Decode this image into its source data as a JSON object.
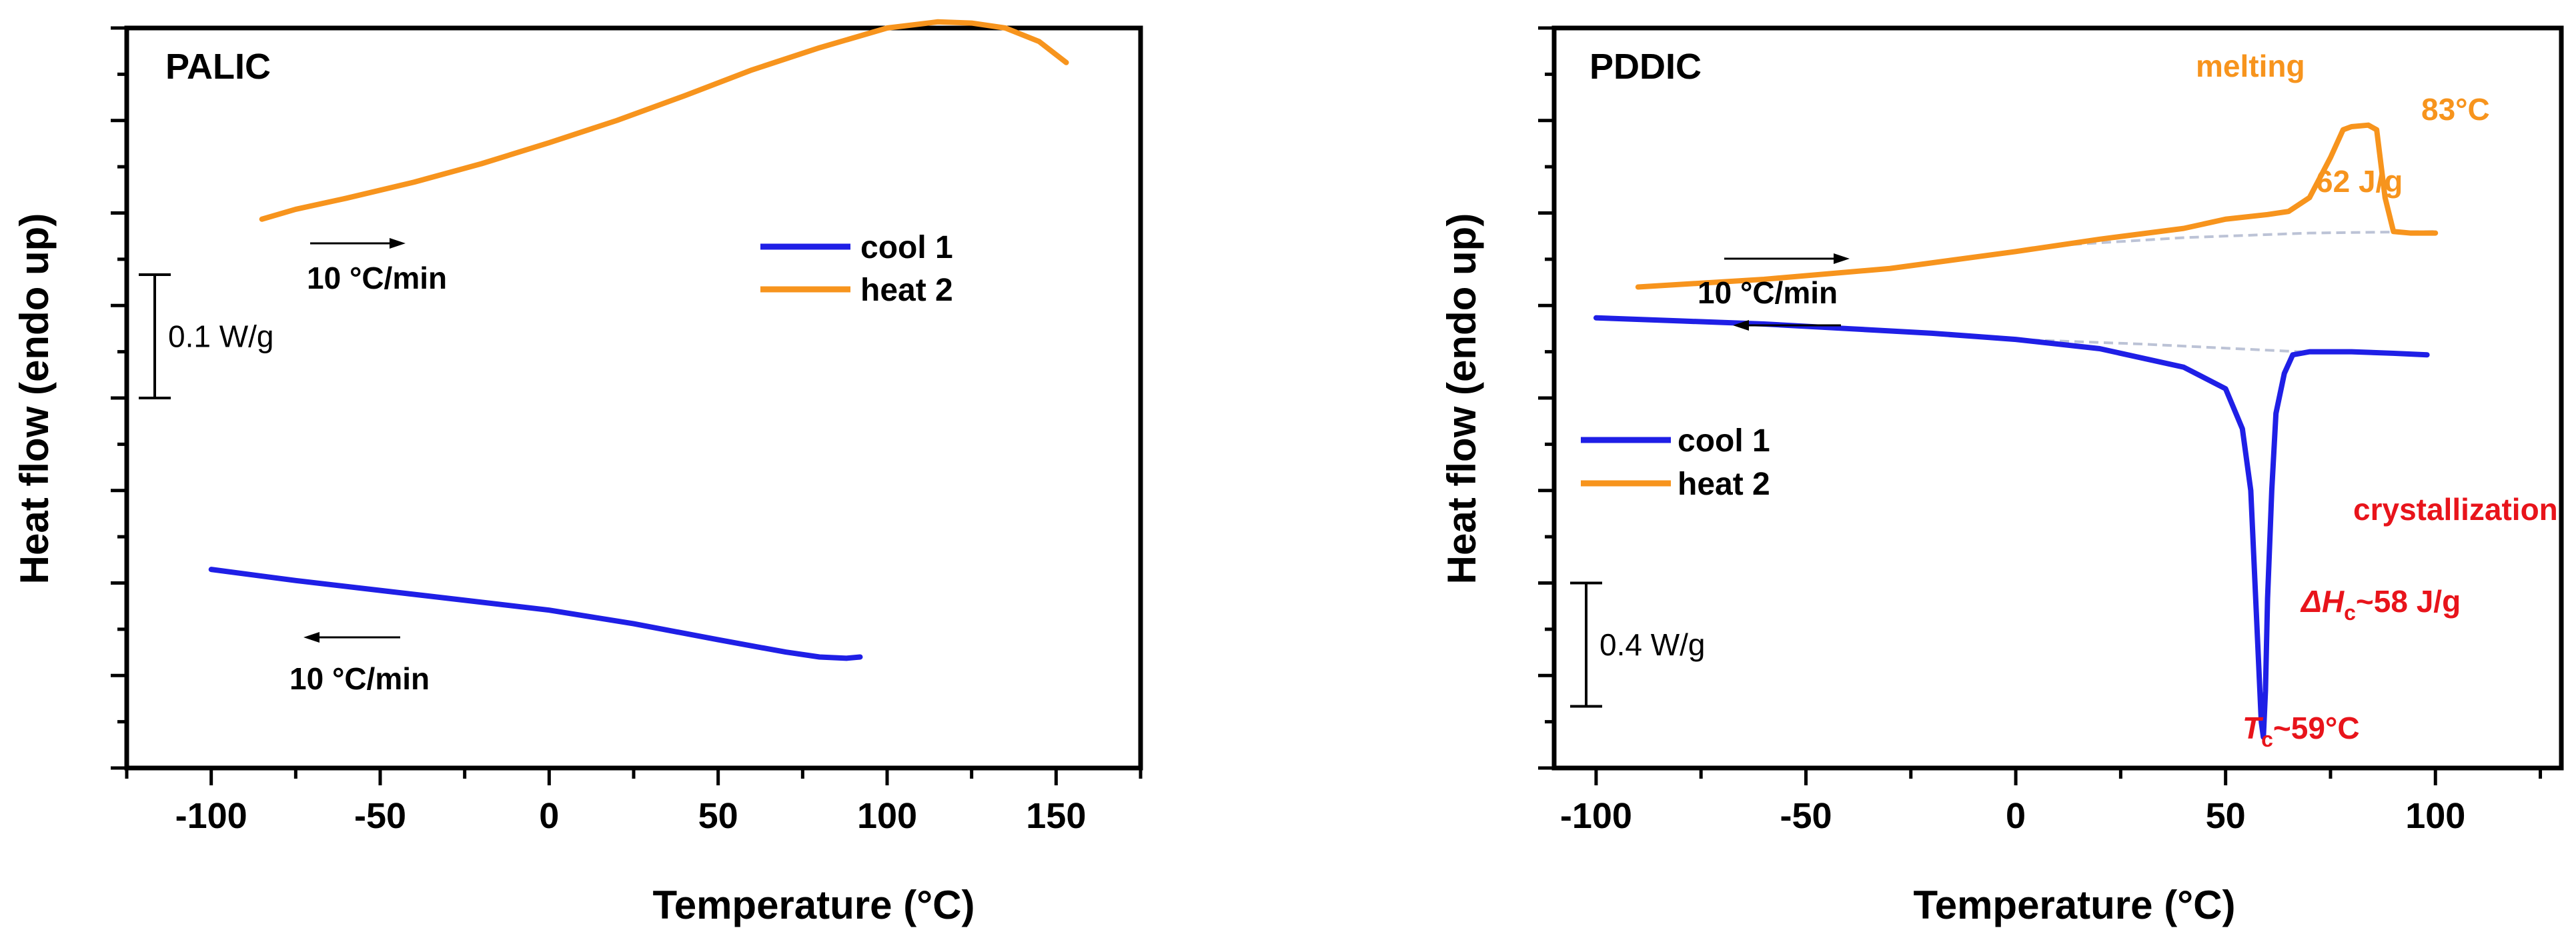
{
  "chart_data": [
    {
      "type": "line",
      "panel_label": "PALIC",
      "xlabel": "Temperature",
      "xlabel_unit": "(°C)",
      "ylabel": "Heat flow (endo up)",
      "xlim": [
        -125,
        175
      ],
      "x_ticks": [
        -100,
        -50,
        0,
        50,
        100,
        150
      ],
      "x_tick_labels": [
        "-100",
        "-50",
        "0",
        "50",
        "100",
        "150"
      ],
      "y_unit_label": "0.1 W/g",
      "ylim": [
        0,
        0.6
      ],
      "scale_bar_range": [
        0.3,
        0.4
      ],
      "legend": [
        {
          "label": "cool 1",
          "color": "#1f1fe6"
        },
        {
          "label": "heat 2",
          "color": "#f7941d"
        }
      ],
      "rate_annotations": [
        {
          "text": "10 °C/min",
          "series": "heat 2",
          "direction": "right"
        },
        {
          "text": "10 °C/min",
          "series": "cool 1",
          "direction": "left"
        }
      ],
      "series": [
        {
          "name": "heat 2",
          "color": "#f7941d",
          "x": [
            -85,
            -75,
            -60,
            -40,
            -20,
            0,
            20,
            40,
            60,
            80,
            100,
            115,
            125,
            135,
            145,
            153
          ],
          "y": [
            0.445,
            0.453,
            0.462,
            0.475,
            0.49,
            0.507,
            0.525,
            0.545,
            0.566,
            0.584,
            0.6,
            0.605,
            0.604,
            0.6,
            0.589,
            0.572
          ]
        },
        {
          "name": "cool 1",
          "color": "#1f1fe6",
          "x": [
            -100,
            -75,
            -50,
            -25,
            0,
            25,
            50,
            70,
            80,
            88,
            92
          ],
          "y": [
            0.161,
            0.152,
            0.144,
            0.136,
            0.128,
            0.117,
            0.104,
            0.094,
            0.09,
            0.089,
            0.09
          ]
        }
      ]
    },
    {
      "type": "line",
      "panel_label": "PDDIC",
      "xlabel": "Temperature",
      "xlabel_unit": "(°C)",
      "ylabel": "Heat flow (endo up)",
      "xlim": [
        -110,
        130
      ],
      "x_ticks": [
        -100,
        -50,
        0,
        50,
        100
      ],
      "x_tick_labels": [
        "-100",
        "-50",
        "0",
        "50",
        "100"
      ],
      "y_unit_label": "0.4 W/g",
      "ylim": [
        0,
        2.4
      ],
      "scale_bar_range": [
        0.2,
        0.6
      ],
      "legend": [
        {
          "label": "cool 1",
          "color": "#1f1fe6"
        },
        {
          "label": "heat 2",
          "color": "#f7941d"
        }
      ],
      "rate_annotations": [
        {
          "text": "10 °C/min",
          "series": "heat 2",
          "direction": "right"
        },
        {
          "text": "10 °C/min",
          "series": "cool 1",
          "direction": "left"
        }
      ],
      "annotations": [
        {
          "text": "melting",
          "color": "#f7941d"
        },
        {
          "text": "83°C",
          "color": "#f7941d"
        },
        {
          "text": "62 J/g",
          "color": "#f7941d"
        },
        {
          "text": "crystallization",
          "color": "#e8141b"
        },
        {
          "text": "ΔH",
          "sub": "c",
          "suffix": "~58 J/g",
          "color": "#e8141b"
        },
        {
          "text": "T",
          "sub": "c",
          "suffix": "~59°C",
          "color": "#e8141b"
        }
      ],
      "series": [
        {
          "name": "heat 2",
          "color": "#f7941d",
          "x": [
            -90,
            -60,
            -30,
            0,
            10,
            20,
            40,
            50,
            60,
            65,
            70,
            75,
            78,
            80,
            84,
            86,
            88,
            90,
            94,
            100
          ],
          "y": [
            1.56,
            1.585,
            1.62,
            1.675,
            1.695,
            1.715,
            1.75,
            1.78,
            1.795,
            1.805,
            1.85,
            1.98,
            2.07,
            2.08,
            2.085,
            2.07,
            1.85,
            1.74,
            1.735,
            1.735
          ]
        },
        {
          "name": "cool 1",
          "color": "#1f1fe6",
          "x": [
            -100,
            -80,
            -60,
            -40,
            -20,
            0,
            20,
            40,
            50,
            54,
            56,
            57,
            58,
            58.5,
            59,
            59.5,
            60,
            61,
            62,
            64,
            66,
            70,
            80,
            90,
            98
          ],
          "y": [
            1.46,
            1.45,
            1.44,
            1.425,
            1.41,
            1.39,
            1.36,
            1.3,
            1.23,
            1.1,
            0.9,
            0.6,
            0.3,
            0.15,
            0.1,
            0.25,
            0.55,
            0.9,
            1.15,
            1.28,
            1.34,
            1.35,
            1.35,
            1.345,
            1.34
          ]
        }
      ],
      "baselines": [
        {
          "series": "heat 2",
          "color": "#bcc3d6",
          "x": [
            10,
            40,
            70,
            100
          ],
          "y": [
            1.695,
            1.72,
            1.735,
            1.74
          ]
        },
        {
          "series": "cool 1",
          "color": "#bcc3d6",
          "x": [
            0,
            30,
            60,
            68
          ],
          "y": [
            1.39,
            1.375,
            1.355,
            1.35
          ]
        }
      ]
    }
  ]
}
